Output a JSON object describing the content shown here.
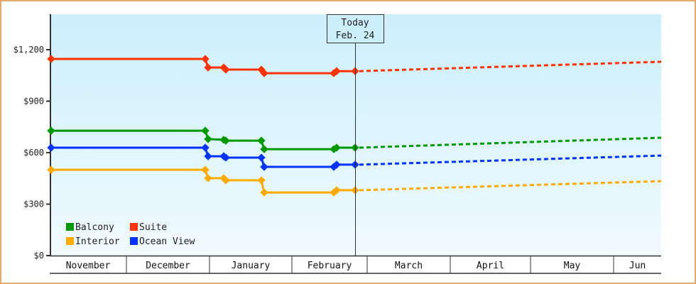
{
  "chart_data": {
    "type": "line",
    "title": "",
    "xlabel": "",
    "ylabel": "",
    "ylim": [
      0,
      1400
    ],
    "y_ticks": [
      {
        "value": 0,
        "label": "$0"
      },
      {
        "value": 300,
        "label": "$300"
      },
      {
        "value": 600,
        "label": "$600"
      },
      {
        "value": 900,
        "label": "$900"
      },
      {
        "value": 1200,
        "label": "$1,200"
      }
    ],
    "x_months": [
      "November",
      "December",
      "January",
      "February",
      "March",
      "April",
      "May",
      "Jun"
    ],
    "grid": false,
    "legend_position": "bottom-left inside",
    "today_marker": {
      "line1": "Today",
      "line2": "Feb. 24"
    },
    "series": [
      {
        "name": "Balcony",
        "color": "#009900",
        "historical": [
          [
            72,
            728
          ],
          [
            289,
            728
          ],
          [
            293,
            679
          ],
          [
            315,
            675
          ],
          [
            318,
            670
          ],
          [
            368,
            670
          ],
          [
            372,
            620
          ],
          [
            470,
            620
          ],
          [
            474,
            629
          ],
          [
            500,
            629
          ]
        ],
        "projected_end": 687
      },
      {
        "name": "Suite",
        "color": "#ff3300",
        "historical": [
          [
            72,
            1146
          ],
          [
            289,
            1146
          ],
          [
            293,
            1096
          ],
          [
            315,
            1096
          ],
          [
            318,
            1084
          ],
          [
            368,
            1084
          ],
          [
            372,
            1063
          ],
          [
            470,
            1063
          ],
          [
            474,
            1075
          ],
          [
            500,
            1075
          ]
        ],
        "projected_end": 1130
      },
      {
        "name": "Interior",
        "color": "#ffaa00",
        "historical": [
          [
            72,
            500
          ],
          [
            289,
            500
          ],
          [
            293,
            451
          ],
          [
            315,
            451
          ],
          [
            318,
            439
          ],
          [
            368,
            439
          ],
          [
            372,
            368
          ],
          [
            470,
            368
          ],
          [
            474,
            381
          ],
          [
            500,
            381
          ]
        ],
        "projected_end": 434
      },
      {
        "name": "Ocean View",
        "color": "#0033ff",
        "historical": [
          [
            72,
            629
          ],
          [
            289,
            629
          ],
          [
            293,
            579
          ],
          [
            315,
            579
          ],
          [
            318,
            571
          ],
          [
            368,
            571
          ],
          [
            372,
            517
          ],
          [
            470,
            517
          ],
          [
            474,
            530
          ],
          [
            500,
            530
          ]
        ],
        "projected_end": 583
      }
    ]
  },
  "legend": {
    "items": [
      {
        "label": "Balcony",
        "color": "#009900"
      },
      {
        "label": "Suite",
        "color": "#ff3300"
      },
      {
        "label": "Interior",
        "color": "#ffaa00"
      },
      {
        "label": "Ocean View",
        "color": "#0033ff"
      }
    ]
  },
  "colors": {
    "frame_border": "#e8aa66",
    "plot_top": "#cceffc",
    "plot_bottom": "#f0fafe",
    "axis": "#333333"
  }
}
